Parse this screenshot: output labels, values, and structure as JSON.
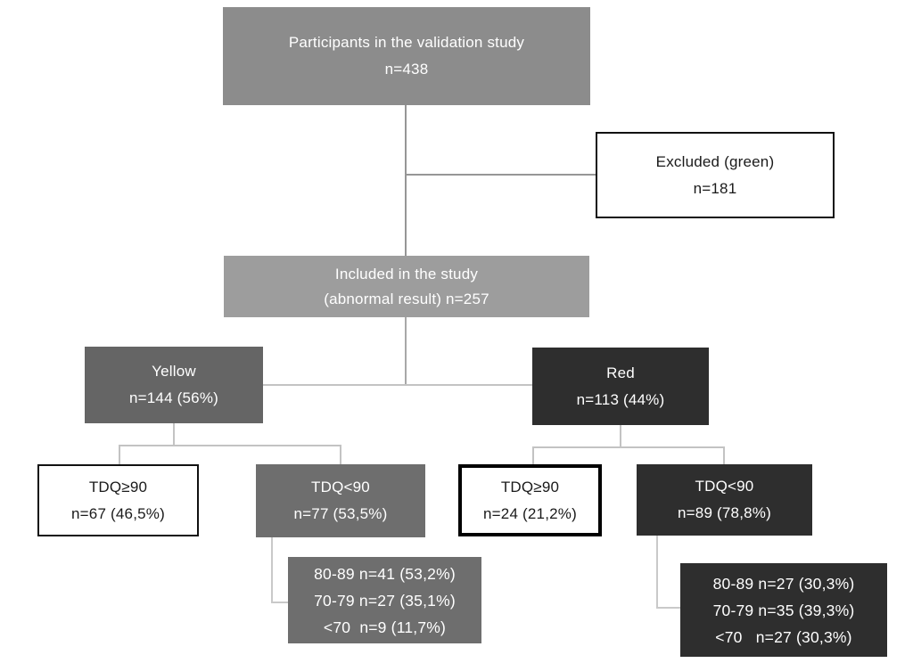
{
  "flowchart": {
    "nodes": {
      "participants": {
        "lines": [
          "Participants in the validation study",
          "n=438"
        ]
      },
      "excluded": {
        "lines": [
          "Excluded (green)",
          "n=181"
        ]
      },
      "included": {
        "lines": [
          "Included in the study",
          "(abnormal result) n=257"
        ]
      },
      "yellow": {
        "lines": [
          "Yellow",
          "n=144 (56%)"
        ]
      },
      "red": {
        "lines": [
          "Red",
          "n=113 (44%)"
        ]
      },
      "yellow_tdq_ge90": {
        "lines": [
          "TDQ≥90",
          "n=67 (46,5%)"
        ]
      },
      "yellow_tdq_lt90": {
        "lines": [
          "TDQ<90",
          "n=77 (53,5%)"
        ]
      },
      "red_tdq_ge90": {
        "lines": [
          "TDQ≥90",
          "n=24 (21,2%)"
        ]
      },
      "red_tdq_lt90": {
        "lines": [
          "TDQ<90",
          "n=89 (78,8%)"
        ]
      },
      "yellow_breakdown": {
        "lines": [
          "80-89 n=41 (53,2%)",
          "70-79 n=27 (35,1%)",
          "<70  n=9 (11,7%)"
        ]
      },
      "red_breakdown": {
        "lines": [
          "80-89 n=27 (30,3%)",
          "70-79 n=35 (39,3%)",
          "<70   n=27 (30,3%)"
        ]
      }
    },
    "palette": {
      "participants_fill": "#8c8c8c",
      "included_fill": "#9d9d9d",
      "yellow_fill": "#656565",
      "yellow_sub_fill": "#6e6e6e",
      "red_fill": "#2e2e2e",
      "outlined_fill": "#ffffff",
      "outlined_border": "#111111",
      "connector_main": "#969696",
      "connector_branch": "#c3c3c3",
      "text_on_dark": "#ffffff",
      "text_on_light": "#1a1a1a"
    }
  }
}
